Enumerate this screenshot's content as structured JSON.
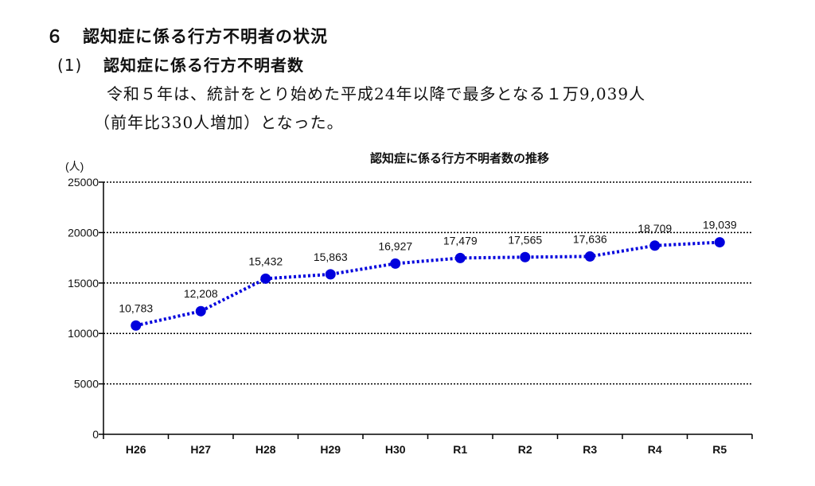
{
  "section": {
    "number": "６",
    "title": "認知症に係る行方不明者の状況"
  },
  "subsection": {
    "number": "(1)",
    "title": "認知症に係る行方不明者数"
  },
  "paragraph": {
    "line1": "令和５年は、統計をとり始めた平成24年以降で最多となる１万9,039人",
    "line2": "（前年比330人増加）となった。"
  },
  "chart_data": {
    "type": "line",
    "title": "認知症に係る行方不明者数の推移",
    "ylabel": "(人)",
    "xlabel": "",
    "categories": [
      "H26",
      "H27",
      "H28",
      "H29",
      "H30",
      "R1",
      "R2",
      "R3",
      "R4",
      "R5"
    ],
    "values": [
      10783,
      12208,
      15432,
      15863,
      16927,
      17479,
      17565,
      17636,
      18709,
      19039
    ],
    "data_labels": [
      "10,783",
      "12,208",
      "15,432",
      "15,863",
      "16,927",
      "17,479",
      "17,565",
      "17,636",
      "18,709",
      "19,039"
    ],
    "ylim": [
      0,
      25000
    ],
    "yticks": [
      0,
      5000,
      10000,
      15000,
      20000,
      25000
    ],
    "grid": true,
    "series_color": "#0000dd",
    "line_style": "dotted"
  }
}
